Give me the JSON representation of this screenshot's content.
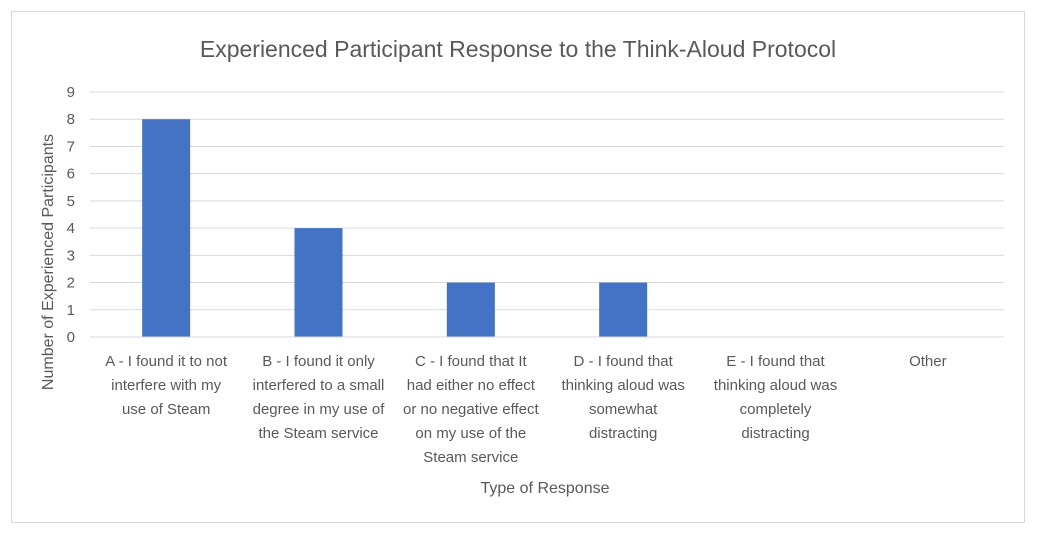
{
  "chart_data": {
    "type": "bar",
    "title": "Experienced Participant Response to the Think-Aloud Protocol",
    "xlabel": "Type of Response",
    "ylabel": "Number of Experienced Participants",
    "categories": [
      [
        "A - I found it to not",
        "interfere with my",
        "use of Steam"
      ],
      [
        "B - I found it only",
        "interfered to a small",
        "degree in my use of",
        "the Steam service"
      ],
      [
        "C - I found that It",
        "had either no effect",
        "or no negative effect",
        "on my use of the",
        "Steam service"
      ],
      [
        "D - I found that",
        "thinking aloud was",
        "somewhat",
        "distracting"
      ],
      [
        "E - I found that",
        "thinking aloud was",
        "completely",
        "distracting"
      ],
      [
        "Other"
      ]
    ],
    "values": [
      8,
      4,
      2,
      2,
      0,
      0
    ],
    "ylim": [
      0,
      9
    ],
    "yticks": [
      "0",
      "1",
      "2",
      "3",
      "4",
      "5",
      "6",
      "7",
      "8",
      "9"
    ],
    "grid": true,
    "bar_color": "#4472c4",
    "grid_color": "#d9d9d9"
  }
}
